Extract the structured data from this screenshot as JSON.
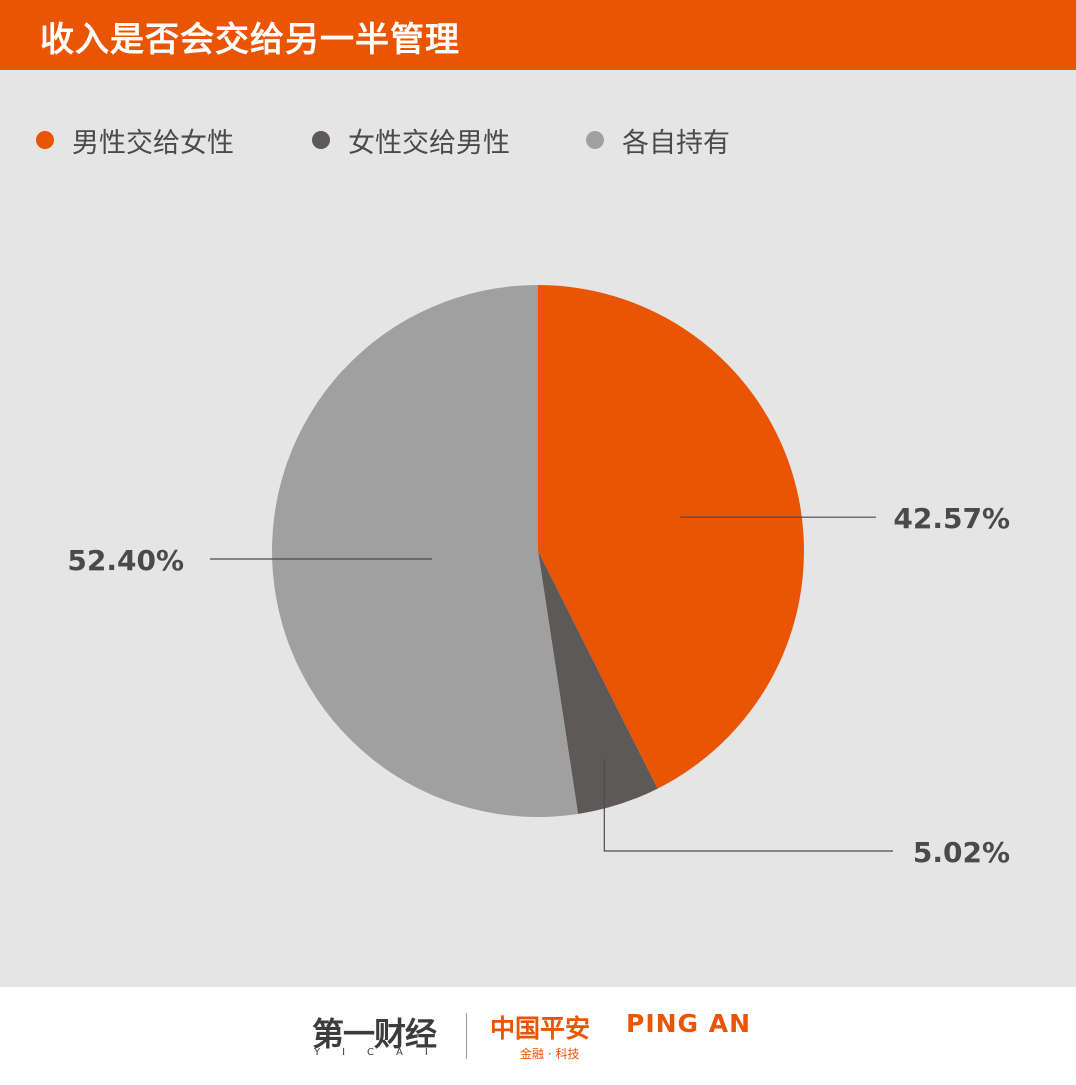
{
  "header": {
    "title": "收入是否会交给另一半管理"
  },
  "colors": {
    "header_bg": "#ea5504",
    "background": "#e6e5e6",
    "leader_line": "#4a4a4a",
    "label_text": "#4a4a4a"
  },
  "chart_data": {
    "type": "pie",
    "title": "收入是否会交给另一半管理",
    "legend_position": "top-left",
    "slices": [
      {
        "name": "男性交给女性",
        "value": 42.57,
        "label": "42.57%",
        "color": "#ea5504"
      },
      {
        "name": "女性交给男性",
        "value": 5.02,
        "label": "5.02%",
        "color": "#5d5959"
      },
      {
        "name": "各自持有",
        "value": 52.4,
        "label": "52.40%",
        "color": "#a0a0a0"
      }
    ]
  },
  "footer": {
    "yicai_logo": "第一财经",
    "yicai_sub": "YICAI",
    "pingan_logo_cn": "中国平安",
    "pingan_logo_en": "PING AN",
    "pingan_sub": "金融 · 科技"
  }
}
